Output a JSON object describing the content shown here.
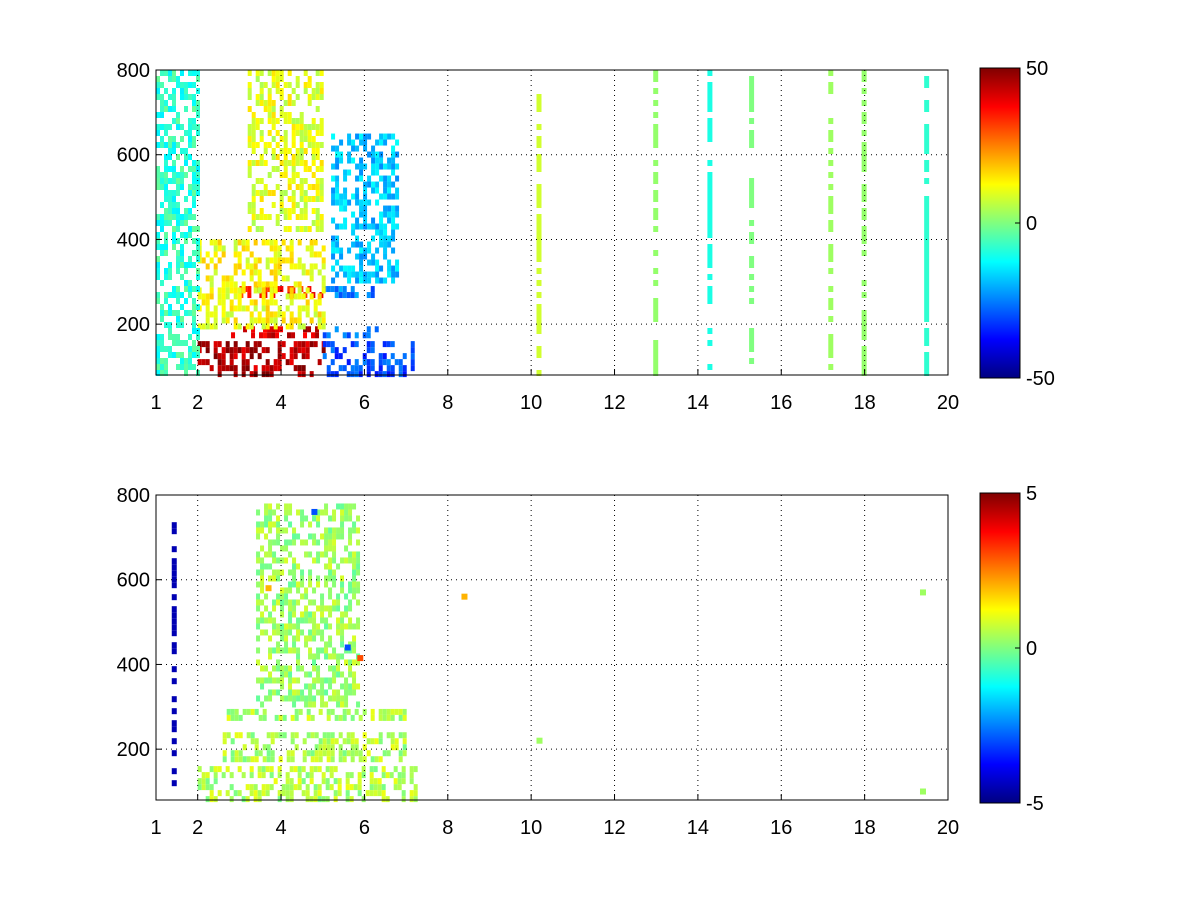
{
  "chart_data": [
    {
      "type": "heatmap",
      "title": "",
      "xlabel": "",
      "ylabel": "",
      "xlim": [
        1,
        20
      ],
      "ylim": [
        80,
        800
      ],
      "x_ticks": [
        1,
        2,
        4,
        6,
        8,
        10,
        12,
        14,
        16,
        18,
        20
      ],
      "x_tick_labels": [
        "1",
        "2",
        "4",
        "6",
        "8",
        "10",
        "12",
        "14",
        "16",
        "18",
        "20"
      ],
      "y_ticks": [
        200,
        400,
        600,
        800
      ],
      "y_tick_labels": [
        "200",
        "400",
        "600",
        "800"
      ],
      "grid": true,
      "colormap": "jet",
      "colorbar": {
        "min": -50,
        "max": 50,
        "ticks": [
          50,
          0,
          -50
        ],
        "tick_labels": [
          "50",
          "0",
          "-50"
        ]
      },
      "regions": [
        {
          "x": [
            2,
            5
          ],
          "y": [
            80,
            160
          ],
          "value": 45
        },
        {
          "x": [
            5,
            7.2
          ],
          "y": [
            80,
            160
          ],
          "value": -30
        },
        {
          "x": [
            2.8,
            5
          ],
          "y": [
            170,
            195
          ],
          "value": 42
        },
        {
          "x": [
            5,
            6.3
          ],
          "y": [
            170,
            195
          ],
          "value": -25
        },
        {
          "x": [
            3,
            5
          ],
          "y": [
            270,
            290
          ],
          "value": 35
        },
        {
          "x": [
            5,
            6.2
          ],
          "y": [
            270,
            290
          ],
          "value": -25
        },
        {
          "x": [
            2,
            5
          ],
          "y": [
            200,
            400
          ],
          "value": 12
        },
        {
          "x": [
            3.2,
            5
          ],
          "y": [
            420,
            800
          ],
          "value": 10
        },
        {
          "x": [
            5.2,
            6.8
          ],
          "y": [
            300,
            650
          ],
          "value": -18
        },
        {
          "x": [
            1,
            2
          ],
          "y": [
            80,
            800
          ],
          "value": -8
        }
      ],
      "stripes": [
        {
          "x": 10.2,
          "value": 8
        },
        {
          "x": 13,
          "value": 2
        },
        {
          "x": 14.3,
          "value": -10
        },
        {
          "x": 15.3,
          "value": 0
        },
        {
          "x": 17.2,
          "value": 3
        },
        {
          "x": 18,
          "value": 2
        },
        {
          "x": 19.5,
          "value": -8
        }
      ]
    },
    {
      "type": "heatmap",
      "title": "",
      "xlabel": "",
      "ylabel": "",
      "xlim": [
        1,
        20
      ],
      "ylim": [
        80,
        800
      ],
      "x_ticks": [
        1,
        2,
        4,
        6,
        8,
        10,
        12,
        14,
        16,
        18,
        20
      ],
      "x_tick_labels": [
        "1",
        "2",
        "4",
        "6",
        "8",
        "10",
        "12",
        "14",
        "16",
        "18",
        "20"
      ],
      "y_ticks": [
        200,
        400,
        600,
        800
      ],
      "y_tick_labels": [
        "200",
        "400",
        "600",
        "800"
      ],
      "grid": true,
      "colormap": "jet",
      "colorbar": {
        "min": -5,
        "max": 5,
        "ticks": [
          5,
          0,
          -5
        ],
        "tick_labels": [
          "5",
          "0",
          "-5"
        ]
      },
      "regions": [
        {
          "x": [
            2,
            7.2
          ],
          "y": [
            80,
            160
          ],
          "value": 0.5
        },
        {
          "x": [
            2.6,
            7
          ],
          "y": [
            170,
            240
          ],
          "value": 0.5
        },
        {
          "x": [
            2.6,
            7
          ],
          "y": [
            270,
            295
          ],
          "value": 0.5
        },
        {
          "x": [
            3.4,
            5.8
          ],
          "y": [
            300,
            780
          ],
          "value": 0.3
        }
      ],
      "stripes": [
        {
          "x": 1.45,
          "y": [
            120,
            750
          ],
          "value": -4.5
        }
      ],
      "points": [
        {
          "x": 4.8,
          "y": 760,
          "value": -3
        },
        {
          "x": 5.6,
          "y": 440,
          "value": -3
        },
        {
          "x": 5.9,
          "y": 415,
          "value": 3
        },
        {
          "x": 3.7,
          "y": 580,
          "value": 2
        },
        {
          "x": 8.4,
          "y": 560,
          "value": 2
        },
        {
          "x": 19.4,
          "y": 570,
          "value": 0.3
        },
        {
          "x": 19.4,
          "y": 100,
          "value": 0.3
        },
        {
          "x": 10.2,
          "y": 220,
          "value": 0.3
        }
      ]
    }
  ]
}
